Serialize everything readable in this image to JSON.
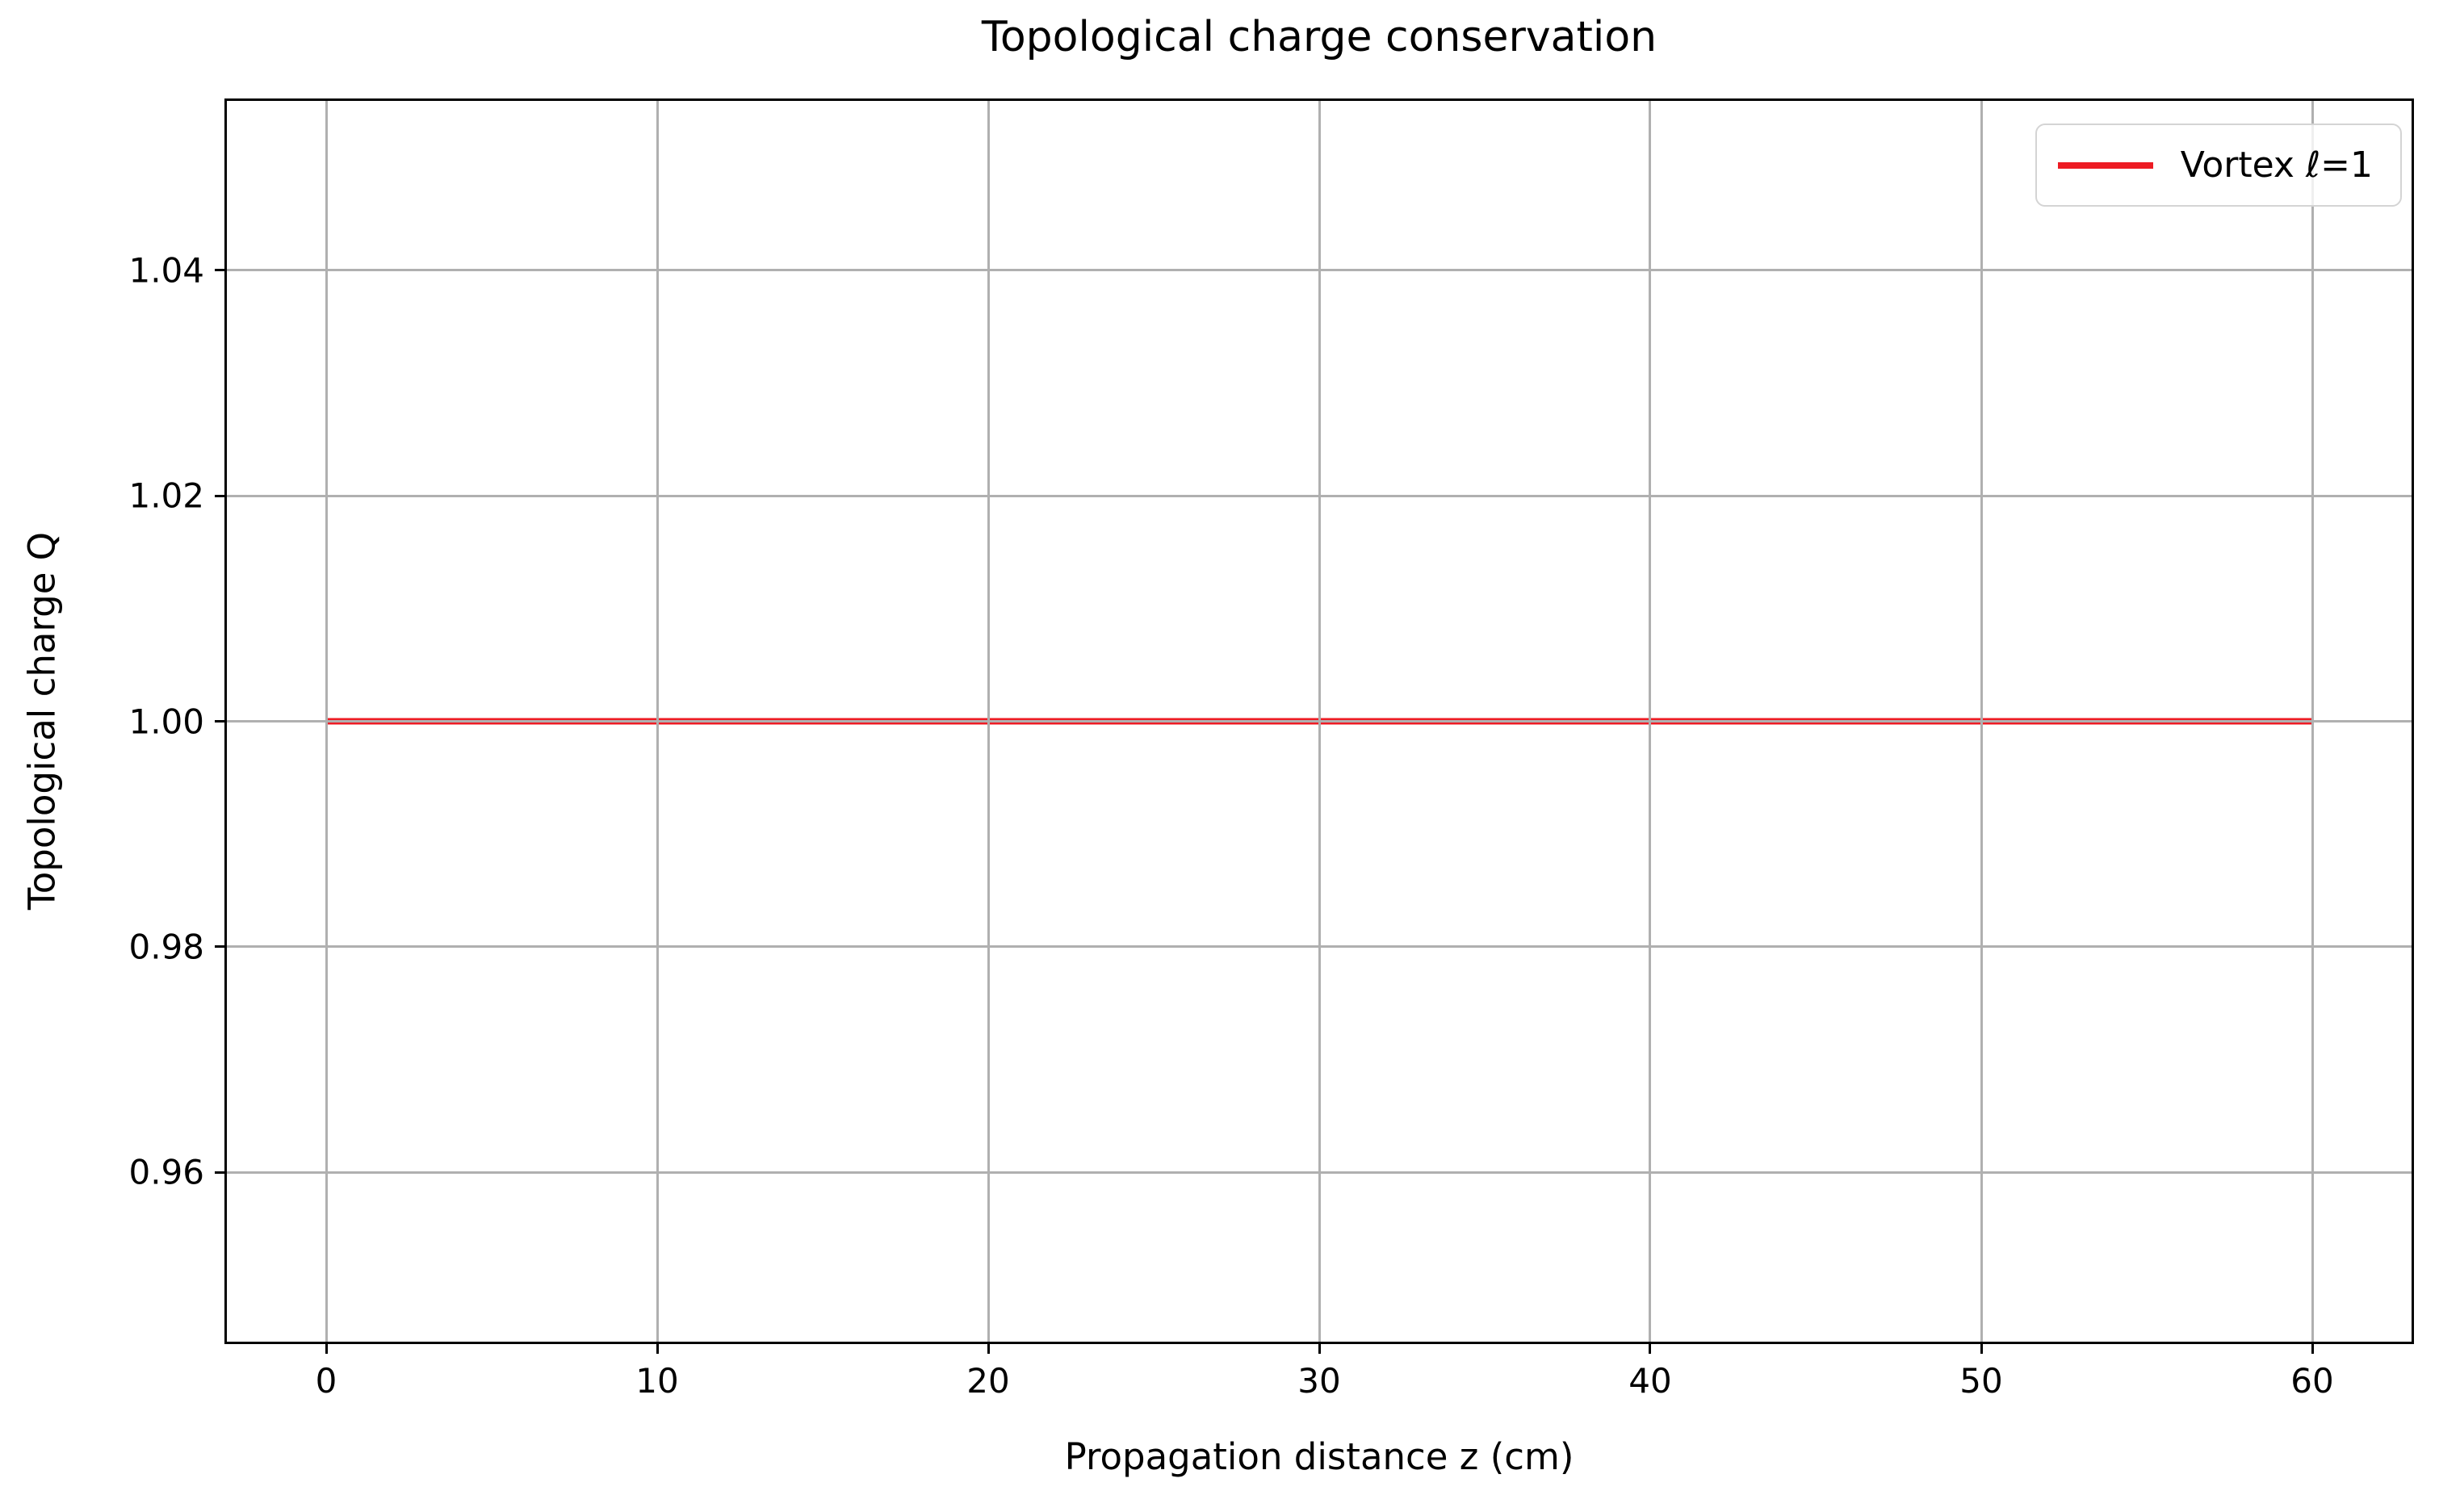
{
  "figure": {
    "background": "#ffffff",
    "text_color": "#000000",
    "spine_color": "#000000"
  },
  "chart_data": {
    "type": "line",
    "title": "Topological charge conservation",
    "xlabel": "Propagation distance z (cm)",
    "ylabel": "Topological charge Q",
    "xlim": [
      -3,
      63
    ],
    "ylim": [
      0.945,
      1.055
    ],
    "xticks": [
      0,
      10,
      20,
      30,
      40,
      50,
      60
    ],
    "xtick_labels": [
      "0",
      "10",
      "20",
      "30",
      "40",
      "50",
      "60"
    ],
    "yticks": [
      0.96,
      0.98,
      1.0,
      1.02,
      1.04
    ],
    "ytick_labels": [
      "0.96",
      "0.98",
      "1.00",
      "1.02",
      "1.04"
    ],
    "grid": true,
    "grid_color": "#b0b0b0",
    "legend": {
      "position": "upper right",
      "entries": [
        {
          "label": "Vortex ℓ=1",
          "color": "#ed1c24"
        }
      ]
    },
    "series": [
      {
        "name": "Vortex ℓ=1",
        "color": "#ed1c24",
        "linewidth": 8,
        "x": [
          0,
          60
        ],
        "y": [
          1.0,
          1.0
        ]
      }
    ]
  }
}
